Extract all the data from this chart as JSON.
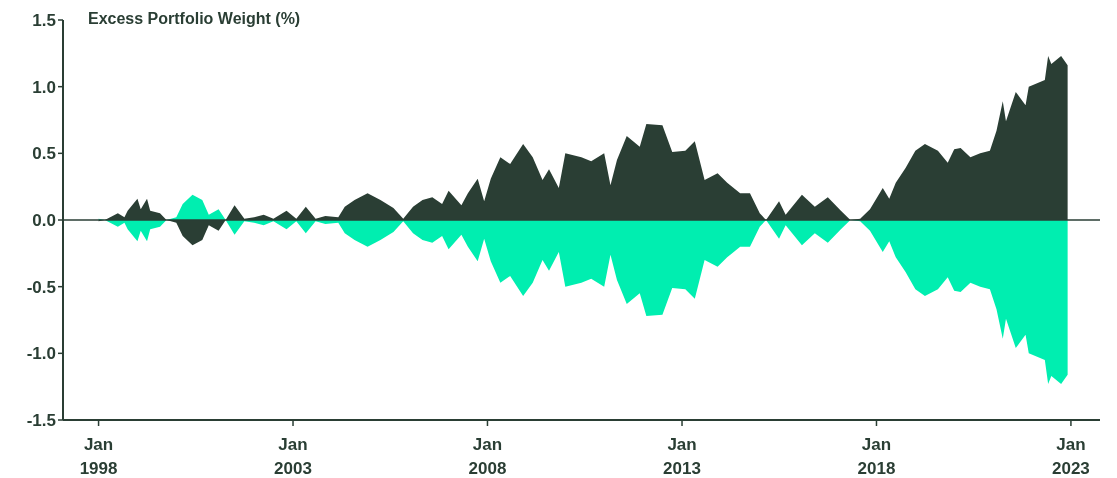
{
  "chart_data": {
    "type": "area",
    "ylabel": "Excess Portfolio Weight (%)",
    "xlim": [
      "1997-02",
      "2023-10"
    ],
    "xticks": [
      {
        "value": "1998-01",
        "label": "Jan 1998"
      },
      {
        "value": "2003-01",
        "label": "Jan 2003"
      },
      {
        "value": "2008-01",
        "label": "Jan 2008"
      },
      {
        "value": "2013-01",
        "label": "Jan 2013"
      },
      {
        "value": "2018-01",
        "label": "Jan 2018"
      },
      {
        "value": "2023-01",
        "label": "Jan 2023"
      }
    ],
    "ylim": [
      -1.5,
      1.5
    ],
    "yticks": [
      -1.5,
      {
        "value": -1,
        "label": "-1.0"
      },
      -0.5,
      {
        "value": 0,
        "label": "0.0"
      },
      0.5,
      {
        "value": 1,
        "label": "1.0"
      },
      1.5
    ],
    "grid": false,
    "legend": false,
    "ref_lines": [
      {
        "axis": "y",
        "value": 0,
        "color": "#2a3e34"
      }
    ],
    "x": [
      "1998-01",
      "1998-03",
      "1998-07",
      "1998-09",
      "1998-10",
      "1999-01",
      "1999-02",
      "1999-04",
      "1999-05",
      "1999-08",
      "1999-10",
      "2000-01",
      "2000-03",
      "2000-06",
      "2000-09",
      "2000-11",
      "2001-02",
      "2001-04",
      "2001-07",
      "2001-10",
      "2002-01",
      "2002-04",
      "2002-07",
      "2002-11",
      "2003-02",
      "2003-05",
      "2003-08",
      "2003-11",
      "2004-03",
      "2004-05",
      "2004-08",
      "2004-12",
      "2005-04",
      "2005-08",
      "2005-11",
      "2006-02",
      "2006-05",
      "2006-08",
      "2006-11",
      "2007-01",
      "2007-05",
      "2007-07",
      "2007-10",
      "2007-12",
      "2008-02",
      "2008-05",
      "2008-08",
      "2008-12",
      "2009-03",
      "2009-06",
      "2009-08",
      "2009-11",
      "2010-01",
      "2010-06",
      "2010-09",
      "2011-01",
      "2011-03",
      "2011-05",
      "2011-08",
      "2011-12",
      "2012-02",
      "2012-07",
      "2012-10",
      "2013-02",
      "2013-05",
      "2013-08",
      "2013-12",
      "2014-03",
      "2014-07",
      "2014-10",
      "2015-01",
      "2015-03",
      "2015-07",
      "2015-09",
      "2016-02",
      "2016-06",
      "2016-10",
      "2017-02",
      "2017-05",
      "2017-08",
      "2017-11",
      "2018-03",
      "2018-05",
      "2018-07",
      "2018-10",
      "2019-01",
      "2019-04",
      "2019-08",
      "2019-11",
      "2020-01",
      "2020-03",
      "2020-06",
      "2020-09",
      "2020-12",
      "2021-02",
      "2021-04",
      "2021-05",
      "2021-08",
      "2021-11",
      "2021-12",
      "2022-05",
      "2022-06",
      "2022-07",
      "2022-10",
      "2022-12"
    ],
    "series": [
      {
        "color": "#2a3e34",
        "values": [
          -0.01,
          0,
          0.05,
          0.02,
          0.07,
          0.16,
          0.08,
          0.16,
          0.07,
          0.05,
          0,
          -0.02,
          -0.12,
          -0.19,
          -0.15,
          -0.04,
          -0.08,
          -0.01,
          0.11,
          0.01,
          0.02,
          0.04,
          0.01,
          0.07,
          0.01,
          0.1,
          0.01,
          0.03,
          0.02,
          0.1,
          0.15,
          0.2,
          0.15,
          0.09,
          0.01,
          0.1,
          0.15,
          0.17,
          0.12,
          0.22,
          0.11,
          0.2,
          0.31,
          0.14,
          0.31,
          0.47,
          0.42,
          0.57,
          0.47,
          0.3,
          0.38,
          0.24,
          0.5,
          0.47,
          0.44,
          0.5,
          0.26,
          0.45,
          0.63,
          0.55,
          0.72,
          0.71,
          0.51,
          0.52,
          0.59,
          0.3,
          0.35,
          0.28,
          0.2,
          0.2,
          0.05,
          0,
          0.14,
          0.04,
          0.19,
          0.1,
          0.17,
          0.07,
          0,
          0.01,
          0.08,
          0.24,
          0.16,
          0.28,
          0.39,
          0.52,
          0.57,
          0.52,
          0.43,
          0.53,
          0.54,
          0.47,
          0.5,
          0.52,
          0.67,
          0.89,
          0.74,
          0.96,
          0.86,
          1.0,
          1.05,
          1.23,
          1.17,
          1.23,
          1.16
        ]
      },
      {
        "color": "#00eeb0",
        "values": [
          0.01,
          0,
          -0.05,
          -0.02,
          -0.07,
          -0.16,
          -0.08,
          -0.16,
          -0.07,
          -0.05,
          0,
          0.02,
          0.12,
          0.19,
          0.15,
          0.04,
          0.08,
          0.01,
          -0.11,
          -0.01,
          -0.02,
          -0.04,
          -0.01,
          -0.07,
          -0.01,
          -0.1,
          -0.01,
          -0.03,
          -0.02,
          -0.1,
          -0.15,
          -0.2,
          -0.15,
          -0.09,
          -0.01,
          -0.1,
          -0.15,
          -0.17,
          -0.12,
          -0.22,
          -0.11,
          -0.2,
          -0.31,
          -0.14,
          -0.31,
          -0.47,
          -0.42,
          -0.57,
          -0.47,
          -0.3,
          -0.38,
          -0.24,
          -0.5,
          -0.47,
          -0.44,
          -0.5,
          -0.26,
          -0.45,
          -0.63,
          -0.55,
          -0.72,
          -0.71,
          -0.51,
          -0.52,
          -0.59,
          -0.3,
          -0.35,
          -0.28,
          -0.2,
          -0.2,
          -0.05,
          0,
          -0.14,
          -0.04,
          -0.19,
          -0.1,
          -0.17,
          -0.07,
          0,
          -0.01,
          -0.08,
          -0.24,
          -0.16,
          -0.28,
          -0.39,
          -0.52,
          -0.57,
          -0.52,
          -0.43,
          -0.53,
          -0.54,
          -0.47,
          -0.5,
          -0.52,
          -0.67,
          -0.89,
          -0.74,
          -0.96,
          -0.86,
          -1.0,
          -1.05,
          -1.23,
          -1.17,
          -1.23,
          -1.16
        ]
      }
    ]
  }
}
